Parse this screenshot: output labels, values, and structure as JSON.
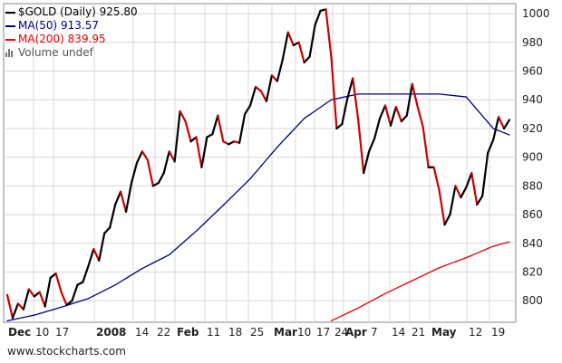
{
  "chart_data": {
    "type": "line",
    "title": "$GOLD (Daily) 925.80",
    "xlabel": "",
    "ylabel": "",
    "ylim": [
      785,
      1007
    ],
    "grid": true,
    "legend_position": "top-left",
    "y_ticks": [
      800,
      820,
      840,
      860,
      880,
      900,
      920,
      940,
      960,
      980,
      1000
    ],
    "x_tick_labels": [
      "Dec",
      "10",
      "17",
      "2008",
      "14",
      "22",
      "Feb",
      "11",
      "18",
      "25",
      "Mar",
      "10",
      "17",
      "24",
      "Apr",
      "7",
      "14",
      "21",
      "May",
      "12",
      "19"
    ],
    "x_ticks_bold": [
      "Dec",
      "2008",
      "Feb",
      "Mar",
      "Apr",
      "May"
    ],
    "series": [
      {
        "name": "$GOLD (Daily)",
        "color": "#000000",
        "down_color": "#cc0000",
        "values": [
          804,
          788,
          798,
          794,
          808,
          803,
          806,
          796,
          816,
          819,
          806,
          797,
          800,
          811,
          813,
          824,
          836,
          828,
          847,
          851,
          867,
          876,
          862,
          882,
          896,
          904,
          898,
          880,
          882,
          889,
          904,
          897,
          932,
          925,
          911,
          914,
          893,
          914,
          916,
          929,
          911,
          909,
          911,
          910,
          930,
          936,
          949,
          946,
          939,
          957,
          953,
          968,
          987,
          978,
          980,
          966,
          970,
          992,
          1002,
          1003,
          970,
          920,
          923,
          941,
          955,
          926,
          889,
          904,
          913,
          927,
          936,
          922,
          935,
          925,
          929,
          951,
          935,
          921,
          893,
          893,
          877,
          853,
          860,
          880,
          872,
          879,
          889,
          867,
          873,
          903,
          912,
          928,
          920,
          926
        ]
      },
      {
        "name": "MA(50)",
        "legend_value": "913.57",
        "color": "#000088",
        "values": [
          786,
          786.8,
          787.6,
          788.4,
          789.2,
          790,
          791.1,
          792.2,
          793.3,
          794.4,
          795.5,
          796.7,
          797.9,
          799.1,
          800.3,
          801.5,
          803.4,
          805.3,
          807.2,
          809.1,
          811,
          813.3,
          815.6,
          817.9,
          820.2,
          822.5,
          824.4,
          826.3,
          828.2,
          830.1,
          832,
          835.3,
          838.6,
          841.9,
          845.2,
          848.5,
          852.1,
          855.7,
          859.3,
          862.9,
          866.5,
          870.2,
          873.9,
          877.6,
          881.3,
          885,
          889.4,
          893.8,
          898.2,
          902.6,
          907,
          911,
          915,
          919,
          923,
          927,
          929.6,
          932.2,
          934.8,
          937.4,
          940,
          940.8,
          941.6,
          942.4,
          943.2,
          944,
          944,
          944,
          944,
          944,
          944,
          944,
          944,
          944,
          944,
          944,
          944,
          944,
          944,
          944,
          944,
          943.6,
          943.2,
          942.8,
          942.4,
          942,
          937.6,
          933.2,
          928.8,
          924.4,
          920,
          918.5,
          917,
          915.5
        ]
      },
      {
        "name": "MA(200)",
        "legend_value": "839.95",
        "color": "#ee0000",
        "values": [
          null,
          null,
          null,
          null,
          null,
          null,
          null,
          null,
          null,
          null,
          null,
          null,
          null,
          null,
          null,
          null,
          null,
          null,
          null,
          null,
          null,
          null,
          null,
          null,
          null,
          null,
          null,
          null,
          null,
          null,
          null,
          null,
          null,
          null,
          null,
          null,
          null,
          null,
          null,
          null,
          null,
          null,
          null,
          null,
          null,
          null,
          null,
          null,
          null,
          null,
          null,
          null,
          null,
          null,
          null,
          null,
          null,
          null,
          null,
          null,
          786,
          787.8,
          789.6,
          791.4,
          793.2,
          795,
          797,
          799,
          801,
          803,
          805,
          806.8,
          808.6,
          810.4,
          812.2,
          814,
          815.8,
          817.6,
          819.4,
          821.2,
          823,
          824.4,
          825.8,
          827.2,
          828.6,
          830,
          831.6,
          833.2,
          834.8,
          836.4,
          838,
          839,
          840,
          841
        ]
      }
    ],
    "volume_label": "Volume undef"
  },
  "footer": {
    "source": "www.stockcharts.com"
  },
  "colors": {
    "grid": "#d8d8d8",
    "frame": "#888888",
    "text": "#222222"
  }
}
